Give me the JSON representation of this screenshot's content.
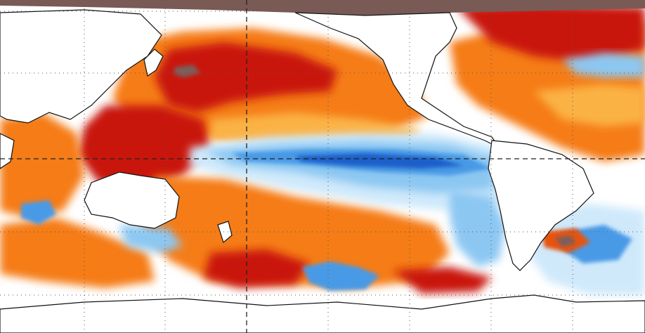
{
  "map": {
    "type": "sea-surface-temperature-anomaly",
    "colors": {
      "ocean_neutral": "#ffffff",
      "land": "#ffffff",
      "coast_outline": "#111111",
      "ice_cap": "#7a5a55",
      "warm_dark": "#c9170d",
      "warm_mid": "#e8530b",
      "warm_orange": "#f57c15",
      "warm_light": "#fbb244",
      "warm_pale": "#fde49a",
      "cool_pale": "#cfe9fb",
      "cool_light": "#8cc7f2",
      "cool_mid": "#4a9ae6",
      "cool_dark": "#1f5fc9",
      "extreme": "#7b5e5c",
      "grid": "#555555"
    },
    "gridlines": {
      "shown": true,
      "style": "dotted"
    },
    "reference_lines": {
      "equator": true,
      "dateline": true,
      "style": "dashed"
    }
  }
}
